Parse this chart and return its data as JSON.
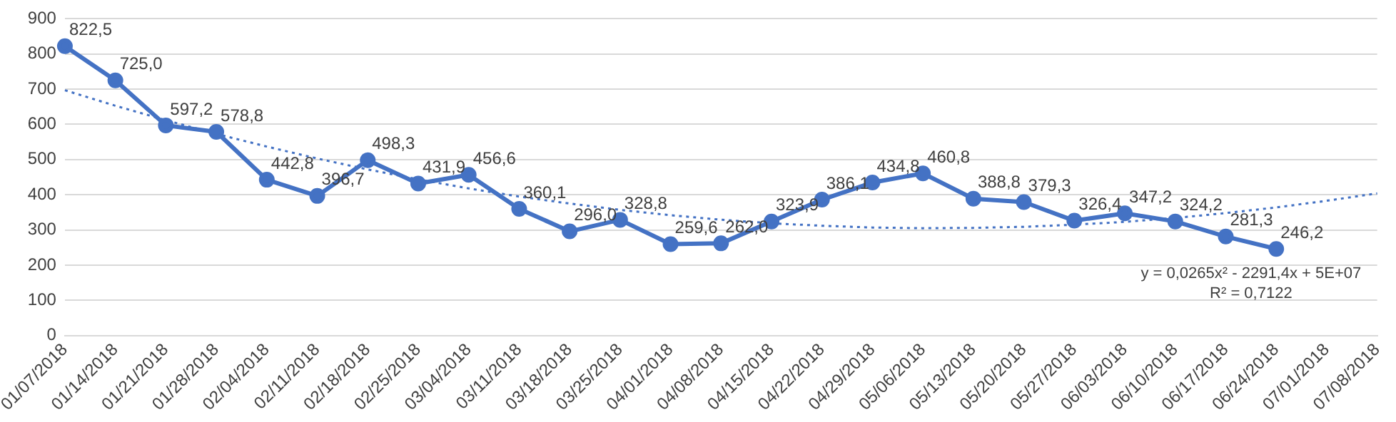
{
  "chart_data": {
    "type": "line",
    "categories": [
      "01/07/2018",
      "01/14/2018",
      "01/21/2018",
      "01/28/2018",
      "02/04/2018",
      "02/11/2018",
      "02/18/2018",
      "02/25/2018",
      "03/04/2018",
      "03/11/2018",
      "03/18/2018",
      "03/25/2018",
      "04/01/2018",
      "04/08/2018",
      "04/15/2018",
      "04/22/2018",
      "04/29/2018",
      "05/06/2018",
      "05/13/2018",
      "05/20/2018",
      "05/27/2018",
      "06/03/2018",
      "06/10/2018",
      "06/17/2018",
      "06/24/2018",
      "07/01/2018",
      "07/08/2018"
    ],
    "series": [
      {
        "color": "#4472c4",
        "marker": "circle",
        "line_style": "solid",
        "values": [
          822.5,
          725.0,
          597.2,
          578.8,
          442.8,
          396.7,
          498.3,
          431.9,
          456.6,
          360.1,
          296.0,
          328.8,
          259.6,
          262.0,
          323.9,
          386.1,
          434.8,
          460.8,
          388.8,
          379.3,
          326.4,
          347.2,
          324.2,
          281.3,
          246.2,
          null,
          null
        ],
        "value_labels": [
          "822,5",
          "725,0",
          "597,2",
          "578,8",
          "442,8",
          "396,7",
          "498,3",
          "431,9",
          "456,6",
          "360,1",
          "296,0",
          "328,8",
          "259,6",
          "262,0",
          "323,9",
          "386,1",
          "434,8",
          "460,8",
          "388,8",
          "379,3",
          "326,4",
          "347,2",
          "324,2",
          "281,3",
          "246,2",
          null,
          null
        ]
      },
      {
        "color": "#4472c4",
        "marker": "none",
        "line_style": "dotted",
        "values": [
          697,
          653,
          612,
          573,
          537,
          503,
          472,
          444,
          418,
          395,
          375,
          357,
          342,
          329,
          319,
          312,
          307,
          305,
          306,
          309,
          315,
          323,
          334,
          348,
          364,
          383,
          404
        ]
      }
    ],
    "ylim": [
      0,
      900
    ],
    "yticks": [
      0,
      100,
      200,
      300,
      400,
      500,
      600,
      700,
      800,
      900
    ],
    "grid": "y",
    "legend": false,
    "annotations": [
      "y = 0,0265x² - 2291,4x + 5E+07",
      "R² = 0,7122"
    ]
  }
}
